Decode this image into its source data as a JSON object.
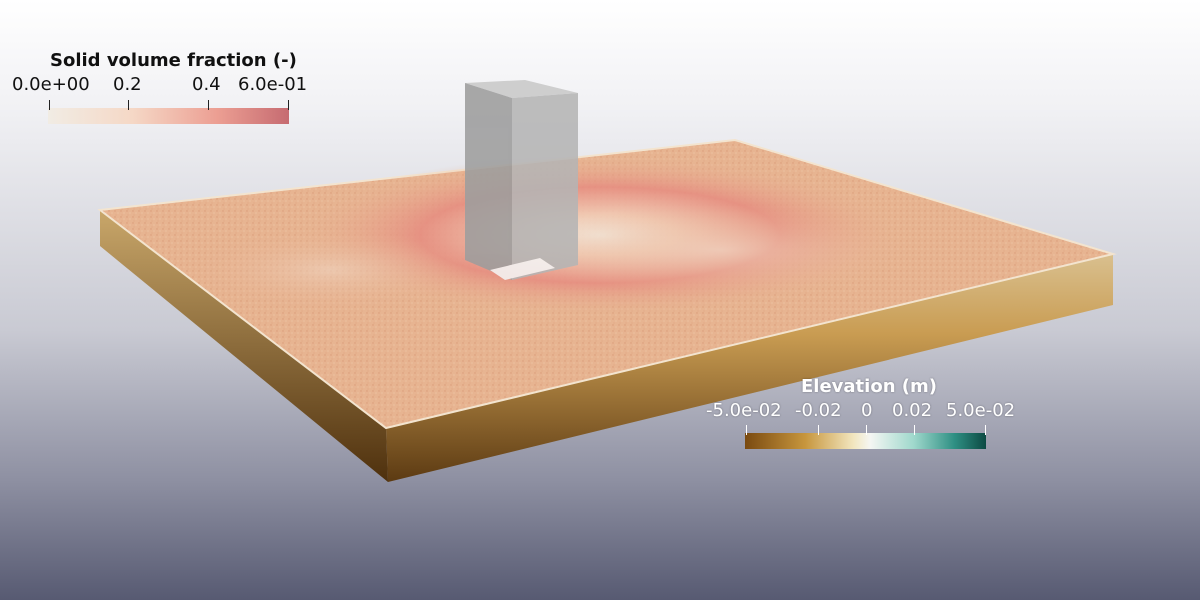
{
  "legends": {
    "solid_volume_fraction": {
      "title": "Solid volume fraction (-)",
      "ticks": [
        "0.0e+00",
        "0.2",
        "0.4",
        "6.0e-01"
      ],
      "colors": [
        "#f1ece4",
        "#f5d8c6",
        "#ec9f93",
        "#c66b71"
      ]
    },
    "elevation": {
      "title": "Elevation (m)",
      "ticks": [
        "-5.0e-02",
        "-0.02",
        "0",
        "0.02",
        "5.0e-02"
      ],
      "colors": [
        "#7a4a10",
        "#c7963d",
        "#f4f6f3",
        "#2e8f83",
        "#0c4a43"
      ]
    }
  },
  "scene": {
    "bed_color": "#e8b393",
    "scour_color": "#e88a7a",
    "pier_color": "#a3a3a3",
    "background_top": "#ffffff",
    "background_bottom": "#575a72"
  }
}
